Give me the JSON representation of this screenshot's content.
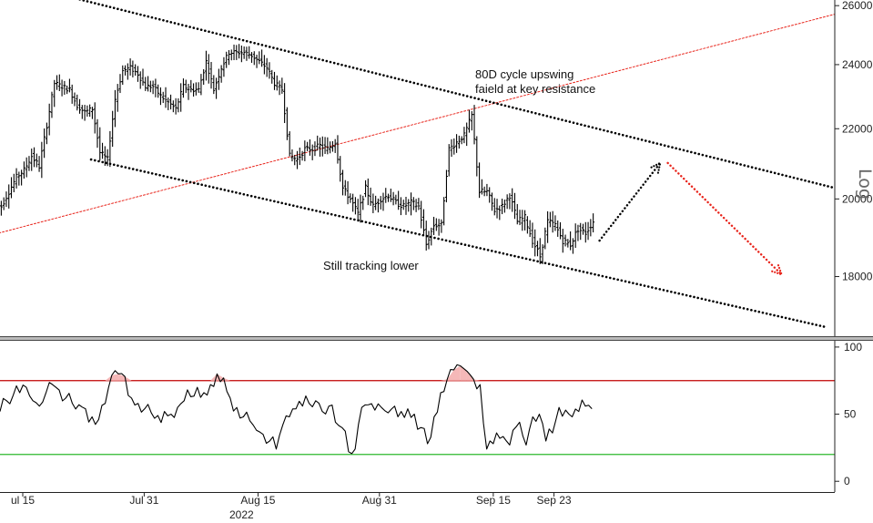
{
  "chart_data": {
    "type": "line",
    "subtype": "ohlc-price-with-oscillator",
    "scale": "log",
    "x_ticks": [
      "ul 15",
      "Jul 31",
      "Aug 15",
      "Aug 31",
      "Sep 15",
      "Sep 23"
    ],
    "x_year_label": "2022",
    "x_range": [
      "2022-07-12",
      "2022-10-30"
    ],
    "price_panel": {
      "axis_title": "Log",
      "y_ticks": [
        "26000",
        "24000",
        "22000",
        "20000",
        "18000"
      ],
      "y_tick_values": [
        26000,
        24000,
        22000,
        20000,
        18000
      ],
      "ylim": [
        16600,
        26200
      ],
      "annotations": [
        {
          "id": "resistance",
          "lines": [
            "80D cycle upswing",
            "faield at key resistance"
          ]
        },
        {
          "id": "lower",
          "lines": [
            "Still tracking lower"
          ]
        }
      ],
      "candles": [
        {
          "date": "2022-07-12",
          "close": 19800
        },
        {
          "date": "2022-07-13",
          "close": 20200
        },
        {
          "date": "2022-07-14",
          "close": 20600
        },
        {
          "date": "2022-07-15",
          "close": 20800
        },
        {
          "date": "2022-07-16",
          "close": 21200
        },
        {
          "date": "2022-07-17",
          "close": 20900
        },
        {
          "date": "2022-07-18",
          "close": 22100
        },
        {
          "date": "2022-07-19",
          "close": 23400
        },
        {
          "date": "2022-07-20",
          "close": 23300
        },
        {
          "date": "2022-07-21",
          "close": 23200
        },
        {
          "date": "2022-07-22",
          "close": 22700
        },
        {
          "date": "2022-07-23",
          "close": 22500
        },
        {
          "date": "2022-07-24",
          "close": 22600
        },
        {
          "date": "2022-07-25",
          "close": 21300
        },
        {
          "date": "2022-07-26",
          "close": 21100
        },
        {
          "date": "2022-07-27",
          "close": 22900
        },
        {
          "date": "2022-07-28",
          "close": 23800
        },
        {
          "date": "2022-07-29",
          "close": 23900
        },
        {
          "date": "2022-07-30",
          "close": 23700
        },
        {
          "date": "2022-07-31",
          "close": 23300
        },
        {
          "date": "2022-08-01",
          "close": 23300
        },
        {
          "date": "2022-08-02",
          "close": 23000
        },
        {
          "date": "2022-08-03",
          "close": 22800
        },
        {
          "date": "2022-08-04",
          "close": 22600
        },
        {
          "date": "2022-08-05",
          "close": 23300
        },
        {
          "date": "2022-08-06",
          "close": 23200
        },
        {
          "date": "2022-08-07",
          "close": 23200
        },
        {
          "date": "2022-08-08",
          "close": 24100
        },
        {
          "date": "2022-08-09",
          "close": 23200
        },
        {
          "date": "2022-08-10",
          "close": 23900
        },
        {
          "date": "2022-08-11",
          "close": 24400
        },
        {
          "date": "2022-08-12",
          "close": 24400
        },
        {
          "date": "2022-08-13",
          "close": 24400
        },
        {
          "date": "2022-08-14",
          "close": 24300
        },
        {
          "date": "2022-08-15",
          "close": 24100
        },
        {
          "date": "2022-08-16",
          "close": 23900
        },
        {
          "date": "2022-08-17",
          "close": 23400
        },
        {
          "date": "2022-08-18",
          "close": 23200
        },
        {
          "date": "2022-08-19",
          "close": 21200
        },
        {
          "date": "2022-08-20",
          "close": 21100
        },
        {
          "date": "2022-08-21",
          "close": 21400
        },
        {
          "date": "2022-08-22",
          "close": 21400
        },
        {
          "date": "2022-08-23",
          "close": 21500
        },
        {
          "date": "2022-08-24",
          "close": 21400
        },
        {
          "date": "2022-08-25",
          "close": 21600
        },
        {
          "date": "2022-08-26",
          "close": 20300
        },
        {
          "date": "2022-08-27",
          "close": 20000
        },
        {
          "date": "2022-08-28",
          "close": 19600
        },
        {
          "date": "2022-08-29",
          "close": 20300
        },
        {
          "date": "2022-08-30",
          "close": 19800
        },
        {
          "date": "2022-08-31",
          "close": 20000
        },
        {
          "date": "2022-09-01",
          "close": 20100
        },
        {
          "date": "2022-09-02",
          "close": 19900
        },
        {
          "date": "2022-09-03",
          "close": 19800
        },
        {
          "date": "2022-09-04",
          "close": 19900
        },
        {
          "date": "2022-09-05",
          "close": 19800
        },
        {
          "date": "2022-09-06",
          "close": 18800
        },
        {
          "date": "2022-09-07",
          "close": 19300
        },
        {
          "date": "2022-09-08",
          "close": 19300
        },
        {
          "date": "2022-09-09",
          "close": 21400
        },
        {
          "date": "2022-09-10",
          "close": 21600
        },
        {
          "date": "2022-09-11",
          "close": 21800
        },
        {
          "date": "2022-09-12",
          "close": 22400
        },
        {
          "date": "2022-09-13",
          "close": 20200
        },
        {
          "date": "2022-09-14",
          "close": 20200
        },
        {
          "date": "2022-09-15",
          "close": 19700
        },
        {
          "date": "2022-09-16",
          "close": 19800
        },
        {
          "date": "2022-09-17",
          "close": 20100
        },
        {
          "date": "2022-09-18",
          "close": 19400
        },
        {
          "date": "2022-09-19",
          "close": 19500
        },
        {
          "date": "2022-09-20",
          "close": 18900
        },
        {
          "date": "2022-09-21",
          "close": 18500
        },
        {
          "date": "2022-09-22",
          "close": 19400
        },
        {
          "date": "2022-09-23",
          "close": 19300
        },
        {
          "date": "2022-09-24",
          "close": 18900
        },
        {
          "date": "2022-09-25",
          "close": 18800
        },
        {
          "date": "2022-09-26",
          "close": 19200
        },
        {
          "date": "2022-09-27",
          "close": 19100
        },
        {
          "date": "2022-09-28",
          "close": 19400
        }
      ],
      "channel_upper": [
        [
          "2022-07-14",
          26800
        ],
        [
          "2022-10-30",
          20300
        ]
      ],
      "channel_lower": [
        [
          "2022-07-24",
          21100
        ],
        [
          "2022-10-29",
          16800
        ]
      ],
      "red_trendline": [
        [
          "2022-07-10",
          19000
        ],
        [
          "2022-10-30",
          25700
        ]
      ],
      "projection_up": [
        [
          "2022-09-29",
          18900
        ],
        [
          "2022-10-07",
          21000
        ]
      ],
      "projection_down": [
        [
          "2022-10-08",
          21000
        ],
        [
          "2022-10-23",
          18050
        ]
      ]
    },
    "oscillator_panel": {
      "y_ticks": [
        "100",
        "50",
        "0"
      ],
      "y_tick_values": [
        100,
        50,
        0
      ],
      "ylim": [
        -8,
        104
      ],
      "upper_level": 75,
      "lower_level": 20,
      "values": [
        52,
        60,
        64,
        66,
        70,
        60,
        56,
        66,
        72,
        68,
        62,
        58,
        57,
        54,
        48,
        46,
        58,
        79,
        80,
        78,
        62,
        58,
        54,
        51,
        49,
        52,
        50,
        55,
        60,
        63,
        70,
        66,
        72,
        80,
        77,
        62,
        55,
        48,
        45,
        38,
        35,
        30,
        24,
        42,
        48,
        54,
        56,
        58,
        60,
        52,
        56,
        44,
        40,
        22,
        24,
        55,
        57,
        53,
        55,
        51,
        56,
        52,
        54,
        50,
        40,
        28,
        48,
        66,
        76,
        83,
        86,
        82,
        76,
        72,
        24,
        28,
        32,
        30,
        38,
        44,
        27,
        48,
        50,
        30,
        36,
        55,
        53,
        48,
        52,
        56,
        54
      ]
    }
  },
  "colors": {
    "price": "#000000",
    "channel": "#000000",
    "red_trend": "#e8241b",
    "projection_up": "#000000",
    "projection_down": "#e8241b",
    "upper_level": "#c00000",
    "lower_level": "#2db82d",
    "overbought_fill": "#f5b8b8",
    "oversold_fill": "#8fdc8f",
    "axis": "#222222",
    "separator": "#444444"
  }
}
